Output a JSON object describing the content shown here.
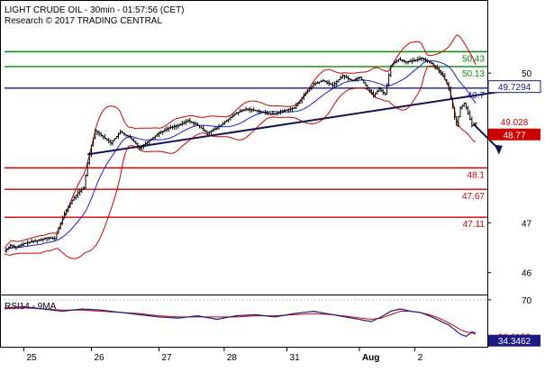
{
  "header": {
    "title": "LIGHT CRUDE OIL - 30min - 01:57:56 (CET)",
    "subtitle": "Research © 2017 TRADING CENTRAL"
  },
  "colors": {
    "price": "#000000",
    "band": "#cc0000",
    "ma": "#1c1ccc",
    "support": "#cc0000",
    "resistance": "#0a8a0a",
    "pivot": "#1a1a80",
    "rsi": "#1a1a80",
    "rsi_ma": "#cc0000",
    "badge_red": "#cc0000",
    "badge_navy": "#1a1a80"
  },
  "chart_data": [
    {
      "type": "line",
      "name": "price-panel",
      "ylim": [
        45.56,
        51.43
      ],
      "y_ticks": [
        46,
        47,
        49,
        50
      ],
      "x_ticks": [
        "25",
        "26",
        "27",
        "28",
        "31",
        "Aug",
        "2"
      ],
      "series": [
        {
          "name": "price",
          "values": [
            [
              0,
              46.43
            ],
            [
              3,
              46.55
            ],
            [
              6,
              46.5
            ],
            [
              10,
              46.58
            ],
            [
              14,
              46.62
            ],
            [
              18,
              46.65
            ],
            [
              22,
              46.7
            ],
            [
              26,
              46.68
            ],
            [
              30,
              47.1
            ],
            [
              32,
              47.25
            ],
            [
              35,
              47.45
            ],
            [
              38,
              47.6
            ],
            [
              41,
              47.7
            ],
            [
              43,
              48.2
            ],
            [
              45,
              48.55
            ],
            [
              47,
              48.85
            ],
            [
              50,
              48.75
            ],
            [
              55,
              48.6
            ],
            [
              60,
              48.82
            ],
            [
              65,
              48.7
            ],
            [
              70,
              48.5
            ],
            [
              75,
              48.65
            ],
            [
              80,
              48.8
            ],
            [
              85,
              48.9
            ],
            [
              90,
              48.95
            ],
            [
              95,
              49.05
            ],
            [
              100,
              48.95
            ],
            [
              105,
              48.8
            ],
            [
              110,
              48.9
            ],
            [
              115,
              49.05
            ],
            [
              120,
              49.2
            ],
            [
              125,
              49.28
            ],
            [
              130,
              49.25
            ],
            [
              135,
              49.2
            ],
            [
              140,
              49.18
            ],
            [
              145,
              49.25
            ],
            [
              150,
              49.3
            ],
            [
              155,
              49.55
            ],
            [
              160,
              49.78
            ],
            [
              165,
              49.85
            ],
            [
              170,
              49.75
            ],
            [
              175,
              49.95
            ],
            [
              180,
              49.85
            ],
            [
              184,
              49.92
            ],
            [
              188,
              49.7
            ],
            [
              191,
              49.55
            ],
            [
              194,
              49.68
            ],
            [
              197,
              49.58
            ],
            [
              200,
              50.15
            ],
            [
              204,
              50.28
            ],
            [
              208,
              50.22
            ],
            [
              212,
              50.25
            ],
            [
              216,
              50.3
            ],
            [
              220,
              50.22
            ],
            [
              224,
              50.1
            ],
            [
              227,
              49.95
            ],
            [
              230,
              49.7
            ],
            [
              232,
              49.3
            ],
            [
              234,
              48.95
            ],
            [
              236,
              49.3
            ],
            [
              238,
              49.4
            ],
            [
              240,
              49.2
            ],
            [
              242,
              48.95
            ],
            [
              244,
              49.0
            ]
          ]
        },
        {
          "name": "support-trendline",
          "values": [
            [
              43,
              48.37
            ],
            [
              262,
              49.66
            ]
          ]
        },
        {
          "name": "projection",
          "values": [
            [
              243,
              48.97
            ],
            [
              256,
              48.4
            ]
          ]
        }
      ],
      "horizontal_levels": [
        {
          "label": "50.43",
          "value": 50.43,
          "kind": "resistance"
        },
        {
          "label": "50.13",
          "value": 50.13,
          "kind": "resistance"
        },
        {
          "label": "49.7",
          "value": 49.7,
          "kind": "pivot"
        },
        {
          "label": "48.1",
          "value": 48.1,
          "kind": "support"
        },
        {
          "label": "47.67",
          "value": 47.67,
          "kind": "support"
        },
        {
          "label": "47.11",
          "value": 47.11,
          "kind": "support"
        }
      ],
      "badges": [
        {
          "label": "49.7294",
          "value": 49.7294,
          "style": "navy_outline"
        },
        {
          "label": "49.028",
          "value": 49.028,
          "style": "red_text"
        },
        {
          "label": "48.77",
          "value": 48.77,
          "style": "red_fill"
        }
      ]
    },
    {
      "type": "line",
      "name": "rsi-panel",
      "title": "RSI14 - 9MA",
      "ylim": [
        29,
        73
      ],
      "y_ticks": [
        70
      ],
      "series": [
        {
          "name": "RSI14",
          "values": [
            [
              0,
              63
            ],
            [
              10,
              64
            ],
            [
              20,
              62
            ],
            [
              30,
              60
            ],
            [
              40,
              62
            ],
            [
              50,
              61
            ],
            [
              60,
              59
            ],
            [
              70,
              57
            ],
            [
              80,
              55
            ],
            [
              90,
              54
            ],
            [
              100,
              56
            ],
            [
              110,
              53
            ],
            [
              120,
              56
            ],
            [
              130,
              57
            ],
            [
              140,
              55
            ],
            [
              150,
              58
            ],
            [
              160,
              60
            ],
            [
              170,
              57
            ],
            [
              180,
              54
            ],
            [
              190,
              51
            ],
            [
              195,
              55
            ],
            [
              200,
              60
            ],
            [
              205,
              62
            ],
            [
              210,
              60
            ],
            [
              215,
              59
            ],
            [
              220,
              56
            ],
            [
              225,
              52
            ],
            [
              230,
              48
            ],
            [
              233,
              44
            ],
            [
              236,
              40
            ],
            [
              239,
              38
            ],
            [
              242,
              42
            ],
            [
              244,
              41
            ]
          ]
        },
        {
          "name": "9MA",
          "values": [
            [
              0,
              62
            ],
            [
              10,
              63
            ],
            [
              20,
              62
            ],
            [
              30,
              61
            ],
            [
              40,
              61
            ],
            [
              50,
              60
            ],
            [
              60,
              59
            ],
            [
              70,
              58
            ],
            [
              80,
              56
            ],
            [
              90,
              55
            ],
            [
              100,
              55
            ],
            [
              110,
              55
            ],
            [
              120,
              55
            ],
            [
              130,
              56
            ],
            [
              140,
              56
            ],
            [
              150,
              57
            ],
            [
              160,
              58
            ],
            [
              170,
              57
            ],
            [
              180,
              55
            ],
            [
              190,
              53
            ],
            [
              195,
              54
            ],
            [
              200,
              57
            ],
            [
              205,
              60
            ],
            [
              210,
              60
            ],
            [
              215,
              59
            ],
            [
              220,
              57
            ],
            [
              225,
              54
            ],
            [
              230,
              50
            ],
            [
              233,
              47
            ],
            [
              236,
              44
            ],
            [
              239,
              42
            ],
            [
              242,
              41
            ],
            [
              244,
              40
            ]
          ]
        }
      ],
      "badges": [
        {
          "label": "38.0153",
          "value": 38.0153,
          "style": "red_text"
        },
        {
          "label": "34.3462",
          "value": 34.3462,
          "style": "navy_fill"
        }
      ]
    }
  ]
}
